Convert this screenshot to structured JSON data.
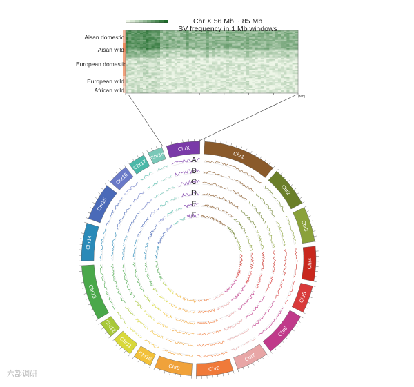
{
  "heatmap": {
    "title_line1": "Chr X 56 Mb ~ 85 Mb",
    "title_line2": "SV frequency in 1 Mb windows",
    "axis_unit": "(Mb)",
    "populations": [
      {
        "label": "Aisan domestic",
        "color": "#f3b49a"
      },
      {
        "label": "Aisan wild",
        "color": "#ef8a5c"
      },
      {
        "label": "European domestic",
        "color": "#f1a17c"
      },
      {
        "label": "European wild",
        "color": "#f6c4ad"
      },
      {
        "label": "African wild",
        "color": "#f8d6c4"
      }
    ]
  },
  "circos": {
    "track_labels": [
      "A",
      "B",
      "C",
      "D",
      "E",
      "F"
    ],
    "chromosomes": [
      {
        "label": "Chr1",
        "color": "#8a5a2b"
      },
      {
        "label": "Chr2",
        "color": "#6b7f2a"
      },
      {
        "label": "Chr3",
        "color": "#8aa13a"
      },
      {
        "label": "Chr4",
        "color": "#c8281e"
      },
      {
        "label": "Chr5",
        "color": "#d83a3a"
      },
      {
        "label": "Chr6",
        "color": "#c03a8a"
      },
      {
        "label": "Chr7",
        "color": "#e8a6a6"
      },
      {
        "label": "Chr8",
        "color": "#f07a3a"
      },
      {
        "label": "Chr9",
        "color": "#f0a23a"
      },
      {
        "label": "Chr10",
        "color": "#f2c13a"
      },
      {
        "label": "Chr11",
        "color": "#d8d83a"
      },
      {
        "label": "Chr12",
        "color": "#a8c83a"
      },
      {
        "label": "Chr13",
        "color": "#4aa84a"
      },
      {
        "label": "Chr14",
        "color": "#2a8ab8"
      },
      {
        "label": "Chr15",
        "color": "#4a6ab8"
      },
      {
        "label": "Chr16",
        "color": "#6a7ac8"
      },
      {
        "label": "Chr17",
        "color": "#4ab8a8"
      },
      {
        "label": "Chr18",
        "color": "#7ac8b8"
      },
      {
        "label": "ChrX",
        "color": "#7a3aa8"
      }
    ]
  },
  "watermark": "六部调研",
  "colors": {
    "heat_dark": "#1e6b2a",
    "heat_light": "#eef6e8"
  }
}
